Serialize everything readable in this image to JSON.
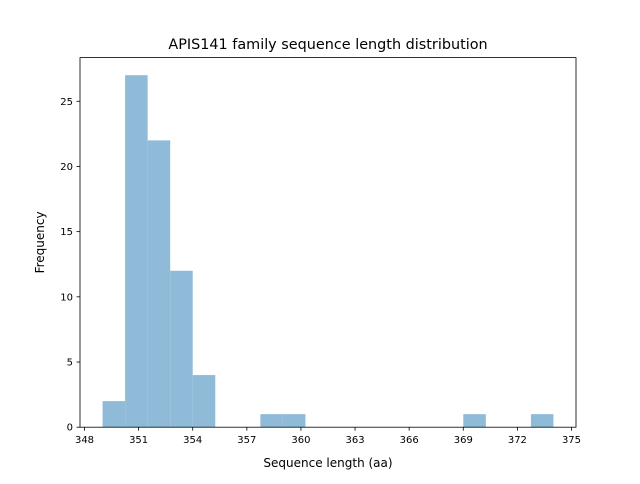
{
  "chart_data": {
    "type": "bar",
    "subtype": "histogram",
    "title": "APIS141 family sequence length distribution",
    "xlabel": "Sequence length (aa)",
    "ylabel": "Frequency",
    "bin_edges": [
      349,
      350.25,
      351.5,
      352.75,
      354,
      355.25,
      356.5,
      357.75,
      359,
      360.25,
      361.5,
      362.75,
      364,
      365.25,
      366.5,
      367.75,
      369,
      370.25,
      371.5,
      372.75,
      374
    ],
    "values": [
      2,
      27,
      22,
      12,
      4,
      0,
      0,
      1,
      1,
      0,
      0,
      0,
      0,
      0,
      0,
      0,
      1,
      0,
      0,
      1
    ],
    "xlim": [
      347.75,
      375.25
    ],
    "ylim": [
      0,
      28.35
    ],
    "xticks": [
      "348",
      "351",
      "354",
      "357",
      "360",
      "363",
      "366",
      "369",
      "372",
      "375"
    ],
    "yticks": [
      "0",
      "5",
      "10",
      "15",
      "20",
      "25"
    ],
    "grid": false,
    "bar_color": "#8fbbd9"
  }
}
